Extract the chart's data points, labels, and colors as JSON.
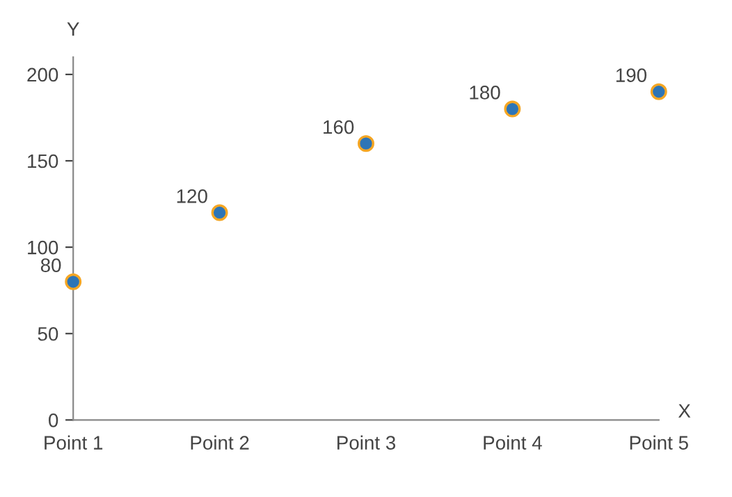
{
  "chart_data": {
    "type": "scatter",
    "xlabel": "X",
    "ylabel": "Y",
    "categories": [
      "Point 1",
      "Point 2",
      "Point 3",
      "Point 4",
      "Point 5"
    ],
    "series": [
      {
        "color": "#2e75b6",
        "values": [
          80,
          120,
          160,
          180,
          190
        ]
      }
    ],
    "ylim": [
      0,
      210
    ],
    "yticks": [
      0,
      50,
      100,
      150,
      200
    ],
    "data_labels": true,
    "marker": "circle",
    "grid": false,
    "legend": false
  }
}
